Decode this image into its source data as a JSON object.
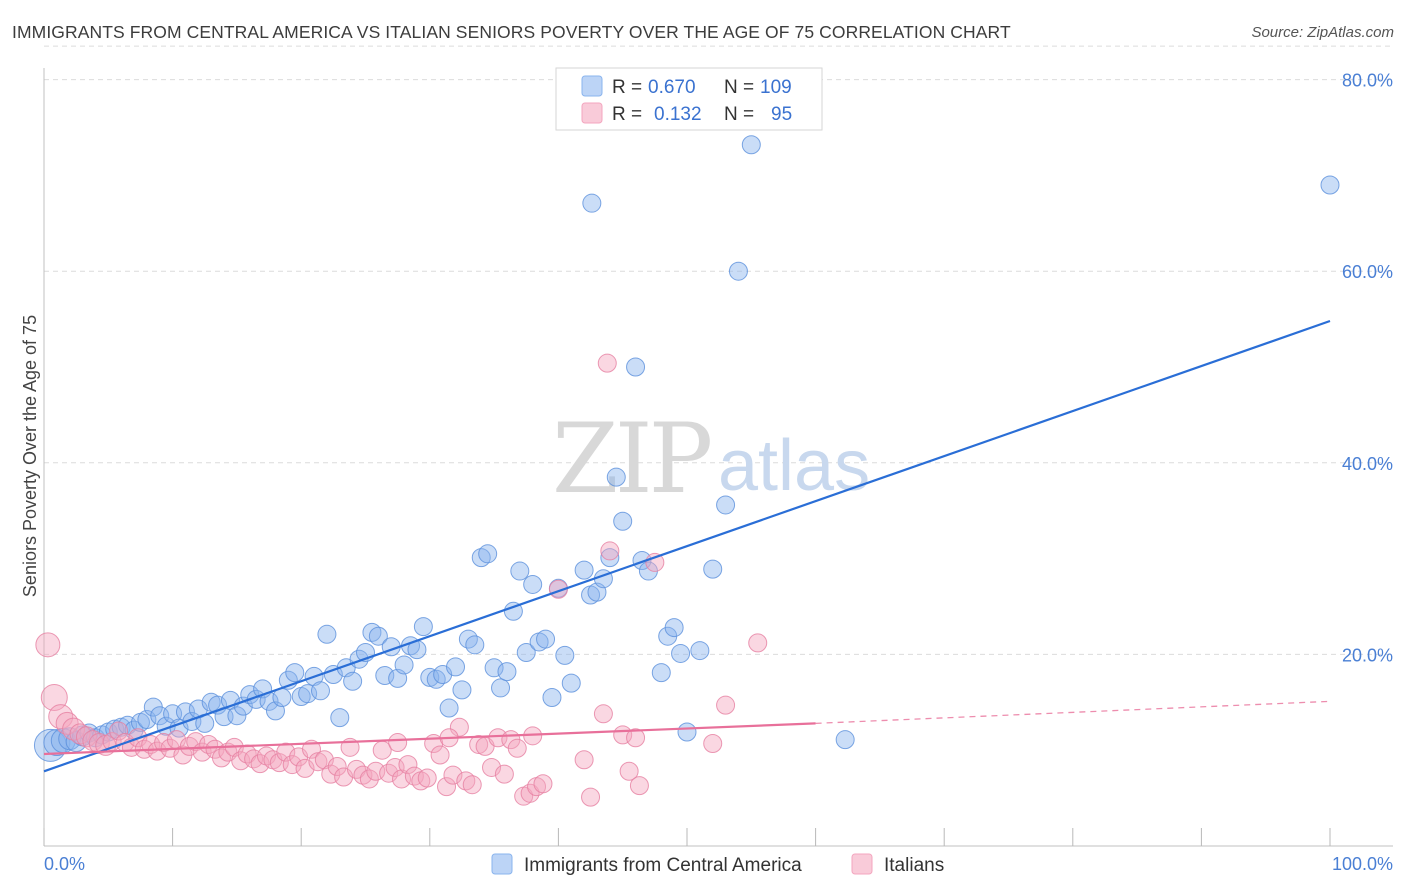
{
  "title": "IMMIGRANTS FROM CENTRAL AMERICA VS ITALIAN SENIORS POVERTY OVER THE AGE OF 75 CORRELATION CHART",
  "source": "Source: ZipAtlas.com",
  "watermark": {
    "zip": "ZIP",
    "atlas": "atlas"
  },
  "chart_data": {
    "type": "scatter",
    "xlabel": "",
    "ylabel": "Seniors Poverty Over the Age of 75",
    "xlim": [
      0,
      100
    ],
    "ylim": [
      0,
      84
    ],
    "y_ticks": [
      20,
      40,
      60,
      80
    ],
    "y_tick_labels": [
      "20.0%",
      "40.0%",
      "60.0%",
      "80.0%"
    ],
    "x_tick_labels": [
      "0.0%",
      "100.0%"
    ],
    "legend": [
      {
        "name": "Immigrants from Central America",
        "color": "#8ab4ee",
        "r_label": "R =",
        "r": "0.670",
        "n_label": "N =",
        "n": "109"
      },
      {
        "name": "Italians",
        "color": "#f4a6bf",
        "r_label": "R =",
        "r": "0.132",
        "n_label": "N =",
        "n": "95"
      }
    ],
    "series": [
      {
        "name": "Immigrants from Central America",
        "color": "#8ab4ee",
        "stroke": "#5b90dc",
        "trend": {
          "x0": 0,
          "y0": 7.8,
          "x1": 100,
          "y1": 54.8,
          "dashed_to": null
        },
        "points": [
          [
            0.5,
            10.5,
            16
          ],
          [
            1,
            10.8,
            13
          ],
          [
            1.5,
            11,
            12
          ],
          [
            2,
            11.2,
            11
          ],
          [
            2.5,
            10.9,
            10
          ],
          [
            3,
            11.5,
            10
          ],
          [
            3.5,
            11.8,
            9
          ],
          [
            4,
            11.3,
            9
          ],
          [
            4.5,
            11.6,
            9
          ],
          [
            5,
            11.9,
            9
          ],
          [
            5.5,
            12.2,
            9
          ],
          [
            6,
            12.4,
            9
          ],
          [
            6.5,
            12.6,
            9
          ],
          [
            7,
            12.1,
            9
          ],
          [
            7.5,
            12.9,
            9
          ],
          [
            8,
            13.2,
            9
          ],
          [
            8.5,
            14.5,
            9
          ],
          [
            9,
            13.6,
            9
          ],
          [
            9.5,
            12.5,
            9
          ],
          [
            10,
            13.8,
            9
          ],
          [
            10.5,
            12.3,
            9
          ],
          [
            11,
            14,
            9
          ],
          [
            11.5,
            13,
            9
          ],
          [
            12,
            14.3,
            9
          ],
          [
            12.5,
            12.8,
            9
          ],
          [
            13,
            15,
            9
          ],
          [
            13.5,
            14.7,
            9
          ],
          [
            14,
            13.5,
            9
          ],
          [
            14.5,
            15.2,
            9
          ],
          [
            15,
            13.6,
            9
          ],
          [
            15.5,
            14.6,
            9
          ],
          [
            16,
            15.8,
            9
          ],
          [
            16.5,
            15.3,
            9
          ],
          [
            17,
            16.4,
            9
          ],
          [
            17.5,
            15.1,
            9
          ],
          [
            18,
            14.1,
            9
          ],
          [
            18.5,
            15.5,
            9
          ],
          [
            19,
            17.3,
            9
          ],
          [
            19.5,
            18.1,
            9
          ],
          [
            20,
            15.6,
            9
          ],
          [
            20.5,
            15.9,
            9
          ],
          [
            21,
            17.7,
            9
          ],
          [
            21.5,
            16.2,
            9
          ],
          [
            22,
            22.1,
            9
          ],
          [
            22.5,
            17.9,
            9
          ],
          [
            23,
            13.4,
            9
          ],
          [
            23.5,
            18.6,
            9
          ],
          [
            24,
            17.2,
            9
          ],
          [
            24.5,
            19.5,
            9
          ],
          [
            25,
            20.2,
            9
          ],
          [
            25.5,
            22.3,
            9
          ],
          [
            26,
            21.9,
            9
          ],
          [
            26.5,
            17.8,
            9
          ],
          [
            27,
            20.8,
            9
          ],
          [
            27.5,
            17.5,
            9
          ],
          [
            28,
            18.9,
            9
          ],
          [
            28.5,
            20.9,
            9
          ],
          [
            29,
            20.5,
            9
          ],
          [
            29.5,
            22.9,
            9
          ],
          [
            30,
            17.6,
            9
          ],
          [
            30.5,
            17.4,
            9
          ],
          [
            31,
            17.9,
            9
          ],
          [
            31.5,
            14.4,
            9
          ],
          [
            32,
            18.7,
            9
          ],
          [
            32.5,
            16.3,
            9
          ],
          [
            33,
            21.6,
            9
          ],
          [
            33.5,
            21,
            9
          ],
          [
            34,
            30.1,
            9
          ],
          [
            34.5,
            30.5,
            9
          ],
          [
            35,
            18.6,
            9
          ],
          [
            35.5,
            16.5,
            9
          ],
          [
            36,
            18.2,
            9
          ],
          [
            36.5,
            24.5,
            9
          ],
          [
            37,
            28.7,
            9
          ],
          [
            37.5,
            20.2,
            9
          ],
          [
            38,
            27.3,
            9
          ],
          [
            38.5,
            21.3,
            9
          ],
          [
            39,
            21.6,
            9
          ],
          [
            39.5,
            15.5,
            9
          ],
          [
            40,
            26.9,
            9
          ],
          [
            40.5,
            19.9,
            9
          ],
          [
            41,
            17,
            9
          ],
          [
            42,
            28.8,
            9
          ],
          [
            42.5,
            26.2,
            9
          ],
          [
            43,
            26.5,
            9
          ],
          [
            43.5,
            27.9,
            9
          ],
          [
            44,
            30.1,
            9
          ],
          [
            44.5,
            38.5,
            9
          ],
          [
            45,
            33.9,
            9
          ],
          [
            46,
            50,
            9
          ],
          [
            46.5,
            29.8,
            9
          ],
          [
            47,
            28.7,
            9
          ],
          [
            48,
            18.1,
            9
          ],
          [
            48.5,
            21.9,
            9
          ],
          [
            49,
            22.8,
            9
          ],
          [
            49.5,
            20.1,
            9
          ],
          [
            50,
            11.9,
            9
          ],
          [
            51,
            20.4,
            9
          ],
          [
            52,
            28.9,
            9
          ],
          [
            53,
            35.6,
            9
          ],
          [
            54,
            60,
            9
          ],
          [
            55,
            73.2,
            9
          ],
          [
            42.6,
            67.1,
            9
          ],
          [
            62.3,
            11.1,
            9
          ],
          [
            100,
            69,
            9
          ]
        ]
      },
      {
        "name": "Italians",
        "color": "#f4a6bf",
        "stroke": "#e67fa1",
        "trend": {
          "x0": 0,
          "y0": 9.6,
          "x1": 60,
          "y1": 12.8,
          "dashed_to": [
            100,
            15.1
          ]
        },
        "points": [
          [
            0.3,
            21,
            12
          ],
          [
            0.8,
            15.5,
            13
          ],
          [
            1.3,
            13.5,
            12
          ],
          [
            1.8,
            12.8,
            11
          ],
          [
            2.3,
            12.2,
            11
          ],
          [
            2.8,
            11.7,
            10
          ],
          [
            3.3,
            11.4,
            10
          ],
          [
            3.8,
            11,
            10
          ],
          [
            4.3,
            10.7,
            10
          ],
          [
            4.8,
            10.5,
            10
          ],
          [
            5.3,
            10.9,
            9
          ],
          [
            5.8,
            12,
            9
          ],
          [
            6.3,
            10.8,
            9
          ],
          [
            6.8,
            10.3,
            9
          ],
          [
            7.3,
            11.3,
            9
          ],
          [
            7.8,
            10.1,
            9
          ],
          [
            8.3,
            10.6,
            9
          ],
          [
            8.8,
            9.9,
            9
          ],
          [
            9.3,
            10.8,
            9
          ],
          [
            9.8,
            10.2,
            9
          ],
          [
            10.3,
            11.1,
            9
          ],
          [
            10.8,
            9.5,
            9
          ],
          [
            11.3,
            10.4,
            9
          ],
          [
            11.8,
            10.9,
            9
          ],
          [
            12.3,
            9.8,
            9
          ],
          [
            12.8,
            10.6,
            9
          ],
          [
            13.3,
            10.1,
            9
          ],
          [
            13.8,
            9.2,
            9
          ],
          [
            14.3,
            9.8,
            9
          ],
          [
            14.8,
            10.3,
            9
          ],
          [
            15.3,
            8.9,
            9
          ],
          [
            15.8,
            9.6,
            9
          ],
          [
            16.3,
            9.1,
            9
          ],
          [
            16.8,
            8.6,
            9
          ],
          [
            17.3,
            9.4,
            9
          ],
          [
            17.8,
            9,
            9
          ],
          [
            18.3,
            8.7,
            9
          ],
          [
            18.8,
            9.8,
            9
          ],
          [
            19.3,
            8.5,
            9
          ],
          [
            19.8,
            9.3,
            9
          ],
          [
            20.3,
            8.1,
            9
          ],
          [
            20.8,
            10.1,
            9
          ],
          [
            21.3,
            8.8,
            9
          ],
          [
            21.8,
            9,
            9
          ],
          [
            22.3,
            7.5,
            9
          ],
          [
            22.8,
            8.3,
            9
          ],
          [
            23.3,
            7.2,
            9
          ],
          [
            23.8,
            10.3,
            9
          ],
          [
            24.3,
            8,
            9
          ],
          [
            24.8,
            7.4,
            9
          ],
          [
            25.3,
            7,
            9
          ],
          [
            25.8,
            7.8,
            9
          ],
          [
            26.3,
            10,
            9
          ],
          [
            26.8,
            7.6,
            9
          ],
          [
            27.3,
            8.2,
            9
          ],
          [
            27.8,
            7,
            9
          ],
          [
            28.3,
            8.5,
            9
          ],
          [
            28.8,
            7.3,
            9
          ],
          [
            29.3,
            6.8,
            9
          ],
          [
            29.8,
            7.1,
            9
          ],
          [
            30.3,
            10.7,
            9
          ],
          [
            30.8,
            9.5,
            9
          ],
          [
            31.3,
            6.2,
            9
          ],
          [
            31.8,
            7.4,
            9
          ],
          [
            32.3,
            12.4,
            9
          ],
          [
            32.8,
            6.8,
            9
          ],
          [
            33.3,
            6.4,
            9
          ],
          [
            33.8,
            10.6,
            9
          ],
          [
            34.3,
            10.4,
            9
          ],
          [
            34.8,
            8.2,
            9
          ],
          [
            35.3,
            11.3,
            9
          ],
          [
            35.8,
            7.5,
            9
          ],
          [
            36.3,
            11.1,
            9
          ],
          [
            36.8,
            10.2,
            9
          ],
          [
            37.3,
            5.2,
            9
          ],
          [
            37.8,
            5.5,
            9
          ],
          [
            38.3,
            6.2,
            9
          ],
          [
            38.8,
            6.5,
            9
          ],
          [
            40,
            26.8,
            9
          ],
          [
            42,
            9,
            9
          ],
          [
            42.5,
            5.1,
            9
          ],
          [
            43.5,
            13.8,
            9
          ],
          [
            44,
            30.8,
            9
          ],
          [
            45,
            11.6,
            9
          ],
          [
            45.5,
            7.8,
            9
          ],
          [
            46,
            11.3,
            9
          ],
          [
            46.3,
            6.3,
            9
          ],
          [
            47.5,
            29.6,
            9
          ],
          [
            52,
            10.7,
            9
          ],
          [
            53,
            14.7,
            9
          ],
          [
            55.5,
            21.2,
            9
          ],
          [
            43.8,
            50.4,
            9
          ],
          [
            38,
            11.5,
            9
          ],
          [
            31.5,
            11.3,
            9
          ],
          [
            27.5,
            10.8,
            9
          ]
        ]
      }
    ]
  }
}
